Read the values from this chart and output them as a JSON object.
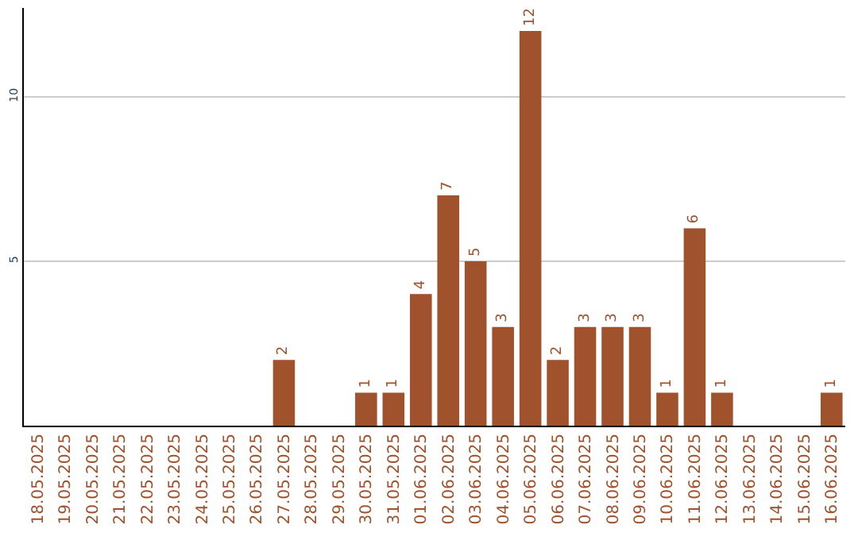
{
  "chart_data": {
    "type": "bar",
    "categories": [
      "18.05.2025",
      "19.05.2025",
      "20.05.2025",
      "21.05.2025",
      "22.05.2025",
      "23.05.2025",
      "24.05.2025",
      "25.05.2025",
      "26.05.2025",
      "27.05.2025",
      "28.05.2025",
      "29.05.2025",
      "30.05.2025",
      "31.05.2025",
      "01.06.2025",
      "02.06.2025",
      "03.06.2025",
      "04.06.2025",
      "05.06.2025",
      "06.06.2025",
      "07.06.2025",
      "08.06.2025",
      "09.06.2025",
      "10.06.2025",
      "11.06.2025",
      "12.06.2025",
      "13.06.2025",
      "14.06.2025",
      "15.06.2025",
      "16.06.2025"
    ],
    "values": [
      0,
      0,
      0,
      0,
      0,
      0,
      0,
      0,
      0,
      2,
      0,
      0,
      1,
      1,
      4,
      7,
      5,
      3,
      12,
      2,
      3,
      3,
      3,
      1,
      6,
      1,
      0,
      0,
      0,
      1
    ],
    "value_labels": [
      null,
      null,
      null,
      null,
      null,
      null,
      null,
      null,
      null,
      "2",
      null,
      null,
      "1",
      "1",
      "4",
      "7",
      "5",
      "3",
      "12",
      "2",
      "3",
      "3",
      "3",
      "1",
      "6",
      "1",
      null,
      null,
      null,
      "1"
    ],
    "color": "#a0522d",
    "ylim": [
      0,
      12.7
    ],
    "yticks": [
      5,
      10
    ],
    "grid": "y",
    "legend": false
  }
}
